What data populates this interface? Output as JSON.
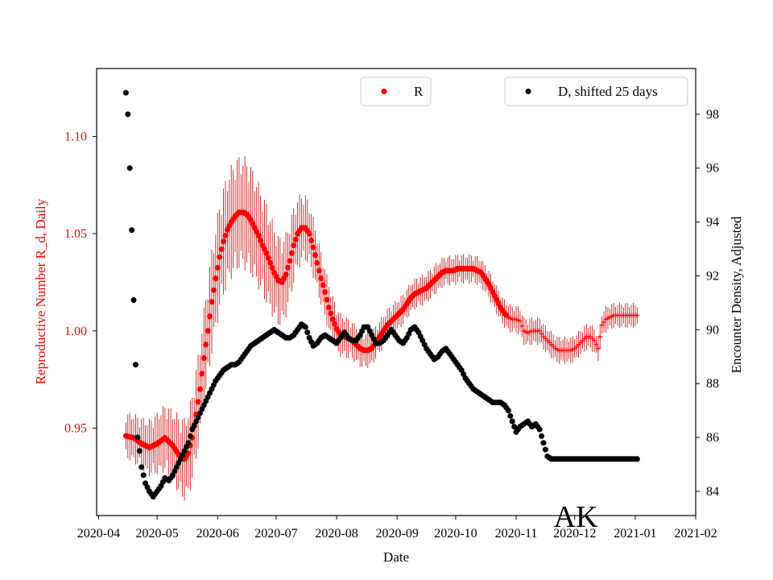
{
  "chart_data": {
    "type": "scatter",
    "title": "",
    "watermark": "AK",
    "xlabel": "Date",
    "ylabel_left": "Reproductive Number R_d, Daily",
    "ylabel_right": "Encounter Density, Adjusted",
    "x_ticks": [
      "2020-04",
      "2020-05",
      "2020-06",
      "2020-07",
      "2020-08",
      "2020-09",
      "2020-10",
      "2020-11",
      "2020-12",
      "2021-01",
      "2021-02"
    ],
    "y_left_ticks": [
      "0.95",
      "1.00",
      "1.05",
      "1.10"
    ],
    "y_right_ticks": [
      "84",
      "86",
      "88",
      "90",
      "92",
      "94",
      "96",
      "98"
    ],
    "ylim_left": [
      0.905,
      1.135
    ],
    "ylim_right": [
      83.1,
      99.7
    ],
    "xlim_days": [
      -1,
      306
    ],
    "grid": false,
    "legend": [
      {
        "label": "R",
        "color": "#ff0000",
        "position": "top-center"
      },
      {
        "label": "D, shifted 25 days",
        "color": "#000000",
        "position": "top-right"
      }
    ],
    "series": [
      {
        "name": "R",
        "axis": "left",
        "color": "#ff0000",
        "error_color": "#cc0000",
        "start_day": 14,
        "points": [
          [
            14,
            0.946
          ],
          [
            18,
            0.945
          ],
          [
            22,
            0.942
          ],
          [
            26,
            0.94
          ],
          [
            30,
            0.942
          ],
          [
            34,
            0.945
          ],
          [
            38,
            0.941
          ],
          [
            42,
            0.935
          ],
          [
            44,
            0.934
          ],
          [
            46,
            0.937
          ],
          [
            48,
            0.945
          ],
          [
            50,
            0.957
          ],
          [
            52,
            0.97
          ],
          [
            54,
            0.986
          ],
          [
            56,
            1.0
          ],
          [
            58,
            1.015
          ],
          [
            60,
            1.027
          ],
          [
            62,
            1.038
          ],
          [
            64,
            1.046
          ],
          [
            66,
            1.052
          ],
          [
            68,
            1.056
          ],
          [
            70,
            1.059
          ],
          [
            72,
            1.061
          ],
          [
            74,
            1.061
          ],
          [
            76,
            1.06
          ],
          [
            78,
            1.057
          ],
          [
            80,
            1.053
          ],
          [
            82,
            1.049
          ],
          [
            84,
            1.044
          ],
          [
            86,
            1.04
          ],
          [
            88,
            1.035
          ],
          [
            90,
            1.03
          ],
          [
            92,
            1.026
          ],
          [
            94,
            1.025
          ],
          [
            96,
            1.029
          ],
          [
            98,
            1.036
          ],
          [
            100,
            1.044
          ],
          [
            102,
            1.05
          ],
          [
            104,
            1.053
          ],
          [
            106,
            1.053
          ],
          [
            108,
            1.05
          ],
          [
            110,
            1.043
          ],
          [
            112,
            1.035
          ],
          [
            114,
            1.027
          ],
          [
            116,
            1.02
          ],
          [
            118,
            1.012
          ],
          [
            120,
            1.006
          ],
          [
            122,
            1.001
          ],
          [
            124,
            0.998
          ],
          [
            126,
            0.997
          ],
          [
            128,
            0.996
          ],
          [
            130,
            0.995
          ],
          [
            132,
            0.993
          ],
          [
            134,
            0.991
          ],
          [
            136,
            0.99
          ],
          [
            138,
            0.99
          ],
          [
            140,
            0.991
          ],
          [
            142,
            0.994
          ],
          [
            144,
            0.997
          ],
          [
            146,
            1.0
          ],
          [
            148,
            1.003
          ],
          [
            150,
            1.005
          ],
          [
            152,
            1.007
          ],
          [
            154,
            1.009
          ],
          [
            156,
            1.011
          ],
          [
            158,
            1.014
          ],
          [
            160,
            1.017
          ],
          [
            162,
            1.019
          ],
          [
            164,
            1.02
          ],
          [
            166,
            1.021
          ],
          [
            168,
            1.022
          ],
          [
            170,
            1.024
          ],
          [
            172,
            1.026
          ],
          [
            174,
            1.028
          ],
          [
            176,
            1.03
          ],
          [
            178,
            1.031
          ],
          [
            180,
            1.031
          ],
          [
            182,
            1.031
          ],
          [
            184,
            1.032
          ],
          [
            186,
            1.032
          ],
          [
            188,
            1.032
          ],
          [
            190,
            1.032
          ],
          [
            192,
            1.032
          ],
          [
            194,
            1.031
          ],
          [
            196,
            1.03
          ],
          [
            198,
            1.027
          ],
          [
            200,
            1.024
          ],
          [
            202,
            1.02
          ],
          [
            204,
            1.016
          ],
          [
            206,
            1.012
          ],
          [
            208,
            1.009
          ],
          [
            210,
            1.007
          ],
          [
            212,
            1.006
          ],
          [
            214,
            1.006
          ],
          [
            216,
            1.005
          ],
          [
            218,
            1.0
          ],
          [
            220,
            0.999
          ],
          [
            222,
            1.0
          ],
          [
            224,
            1.0
          ],
          [
            226,
            1.0
          ],
          [
            228,
            0.997
          ],
          [
            230,
            0.995
          ],
          [
            232,
            0.993
          ],
          [
            234,
            0.991
          ],
          [
            236,
            0.99
          ],
          [
            238,
            0.99
          ],
          [
            240,
            0.99
          ],
          [
            242,
            0.99
          ],
          [
            244,
            0.991
          ],
          [
            246,
            0.993
          ],
          [
            248,
            0.995
          ],
          [
            250,
            0.997
          ],
          [
            252,
            0.997
          ],
          [
            254,
            0.995
          ],
          [
            256,
            0.991
          ],
          [
            258,
            1.003
          ],
          [
            260,
            1.006
          ],
          [
            262,
            1.007
          ],
          [
            264,
            1.008
          ],
          [
            266,
            1.008
          ],
          [
            268,
            1.008
          ],
          [
            270,
            1.008
          ],
          [
            272,
            1.008
          ],
          [
            274,
            1.008
          ],
          [
            276,
            1.008
          ]
        ]
      },
      {
        "name": "D, shifted 25 days",
        "axis": "right",
        "color": "#000000",
        "points": [
          [
            14,
            98.8
          ],
          [
            15,
            98.0
          ],
          [
            16,
            96.0
          ],
          [
            17,
            93.7
          ],
          [
            18,
            91.1
          ],
          [
            19,
            88.7
          ],
          [
            20,
            86.0
          ],
          [
            21,
            85.5
          ],
          [
            22,
            84.9
          ],
          [
            24,
            84.3
          ],
          [
            26,
            84.0
          ],
          [
            28,
            83.8
          ],
          [
            30,
            84.0
          ],
          [
            32,
            84.2
          ],
          [
            34,
            84.5
          ],
          [
            36,
            84.4
          ],
          [
            38,
            84.6
          ],
          [
            40,
            84.9
          ],
          [
            42,
            85.2
          ],
          [
            44,
            85.5
          ],
          [
            46,
            85.8
          ],
          [
            48,
            86.3
          ],
          [
            50,
            86.6
          ],
          [
            52,
            86.9
          ],
          [
            54,
            87.2
          ],
          [
            56,
            87.5
          ],
          [
            58,
            87.8
          ],
          [
            60,
            88.1
          ],
          [
            62,
            88.3
          ],
          [
            64,
            88.5
          ],
          [
            66,
            88.6
          ],
          [
            68,
            88.7
          ],
          [
            70,
            88.7
          ],
          [
            72,
            88.8
          ],
          [
            74,
            89.0
          ],
          [
            76,
            89.2
          ],
          [
            78,
            89.4
          ],
          [
            80,
            89.5
          ],
          [
            82,
            89.6
          ],
          [
            84,
            89.7
          ],
          [
            86,
            89.8
          ],
          [
            88,
            89.9
          ],
          [
            90,
            90.0
          ],
          [
            92,
            89.9
          ],
          [
            94,
            89.8
          ],
          [
            96,
            89.7
          ],
          [
            98,
            89.7
          ],
          [
            100,
            89.8
          ],
          [
            102,
            90.0
          ],
          [
            104,
            90.2
          ],
          [
            106,
            90.1
          ],
          [
            108,
            89.7
          ],
          [
            110,
            89.4
          ],
          [
            112,
            89.5
          ],
          [
            114,
            89.7
          ],
          [
            116,
            89.8
          ],
          [
            118,
            89.7
          ],
          [
            120,
            89.6
          ],
          [
            122,
            89.5
          ],
          [
            124,
            89.7
          ],
          [
            126,
            89.9
          ],
          [
            128,
            89.7
          ],
          [
            130,
            89.6
          ],
          [
            132,
            89.6
          ],
          [
            134,
            89.8
          ],
          [
            136,
            90.1
          ],
          [
            138,
            90.1
          ],
          [
            140,
            89.8
          ],
          [
            142,
            89.5
          ],
          [
            144,
            89.5
          ],
          [
            146,
            89.6
          ],
          [
            148,
            89.8
          ],
          [
            150,
            90.0
          ],
          [
            152,
            89.8
          ],
          [
            154,
            89.6
          ],
          [
            156,
            89.5
          ],
          [
            158,
            89.7
          ],
          [
            160,
            90.0
          ],
          [
            162,
            90.1
          ],
          [
            164,
            89.9
          ],
          [
            166,
            89.6
          ],
          [
            168,
            89.3
          ],
          [
            170,
            89.1
          ],
          [
            172,
            88.9
          ],
          [
            174,
            89.0
          ],
          [
            176,
            89.2
          ],
          [
            178,
            89.3
          ],
          [
            180,
            89.1
          ],
          [
            182,
            88.9
          ],
          [
            184,
            88.7
          ],
          [
            186,
            88.5
          ],
          [
            188,
            88.2
          ],
          [
            190,
            88.0
          ],
          [
            192,
            87.8
          ],
          [
            194,
            87.7
          ],
          [
            196,
            87.6
          ],
          [
            198,
            87.5
          ],
          [
            200,
            87.4
          ],
          [
            202,
            87.3
          ],
          [
            204,
            87.3
          ],
          [
            206,
            87.3
          ],
          [
            208,
            87.2
          ],
          [
            210,
            87.0
          ],
          [
            212,
            86.6
          ],
          [
            214,
            86.2
          ],
          [
            216,
            86.4
          ],
          [
            218,
            86.5
          ],
          [
            220,
            86.6
          ],
          [
            222,
            86.4
          ],
          [
            224,
            86.5
          ],
          [
            226,
            86.3
          ],
          [
            228,
            85.8
          ],
          [
            230,
            85.3
          ],
          [
            232,
            85.2
          ],
          [
            234,
            85.2
          ],
          [
            236,
            85.2
          ],
          [
            238,
            85.2
          ],
          [
            240,
            85.2
          ],
          [
            242,
            85.2
          ],
          [
            244,
            85.2
          ],
          [
            246,
            85.2
          ],
          [
            248,
            85.2
          ],
          [
            250,
            85.2
          ],
          [
            252,
            85.2
          ],
          [
            254,
            85.2
          ],
          [
            256,
            85.2
          ],
          [
            258,
            85.2
          ],
          [
            260,
            85.2
          ],
          [
            262,
            85.2
          ],
          [
            264,
            85.2
          ],
          [
            266,
            85.2
          ],
          [
            268,
            85.2
          ],
          [
            270,
            85.2
          ],
          [
            272,
            85.2
          ],
          [
            274,
            85.2
          ],
          [
            276,
            85.2
          ]
        ]
      }
    ]
  }
}
